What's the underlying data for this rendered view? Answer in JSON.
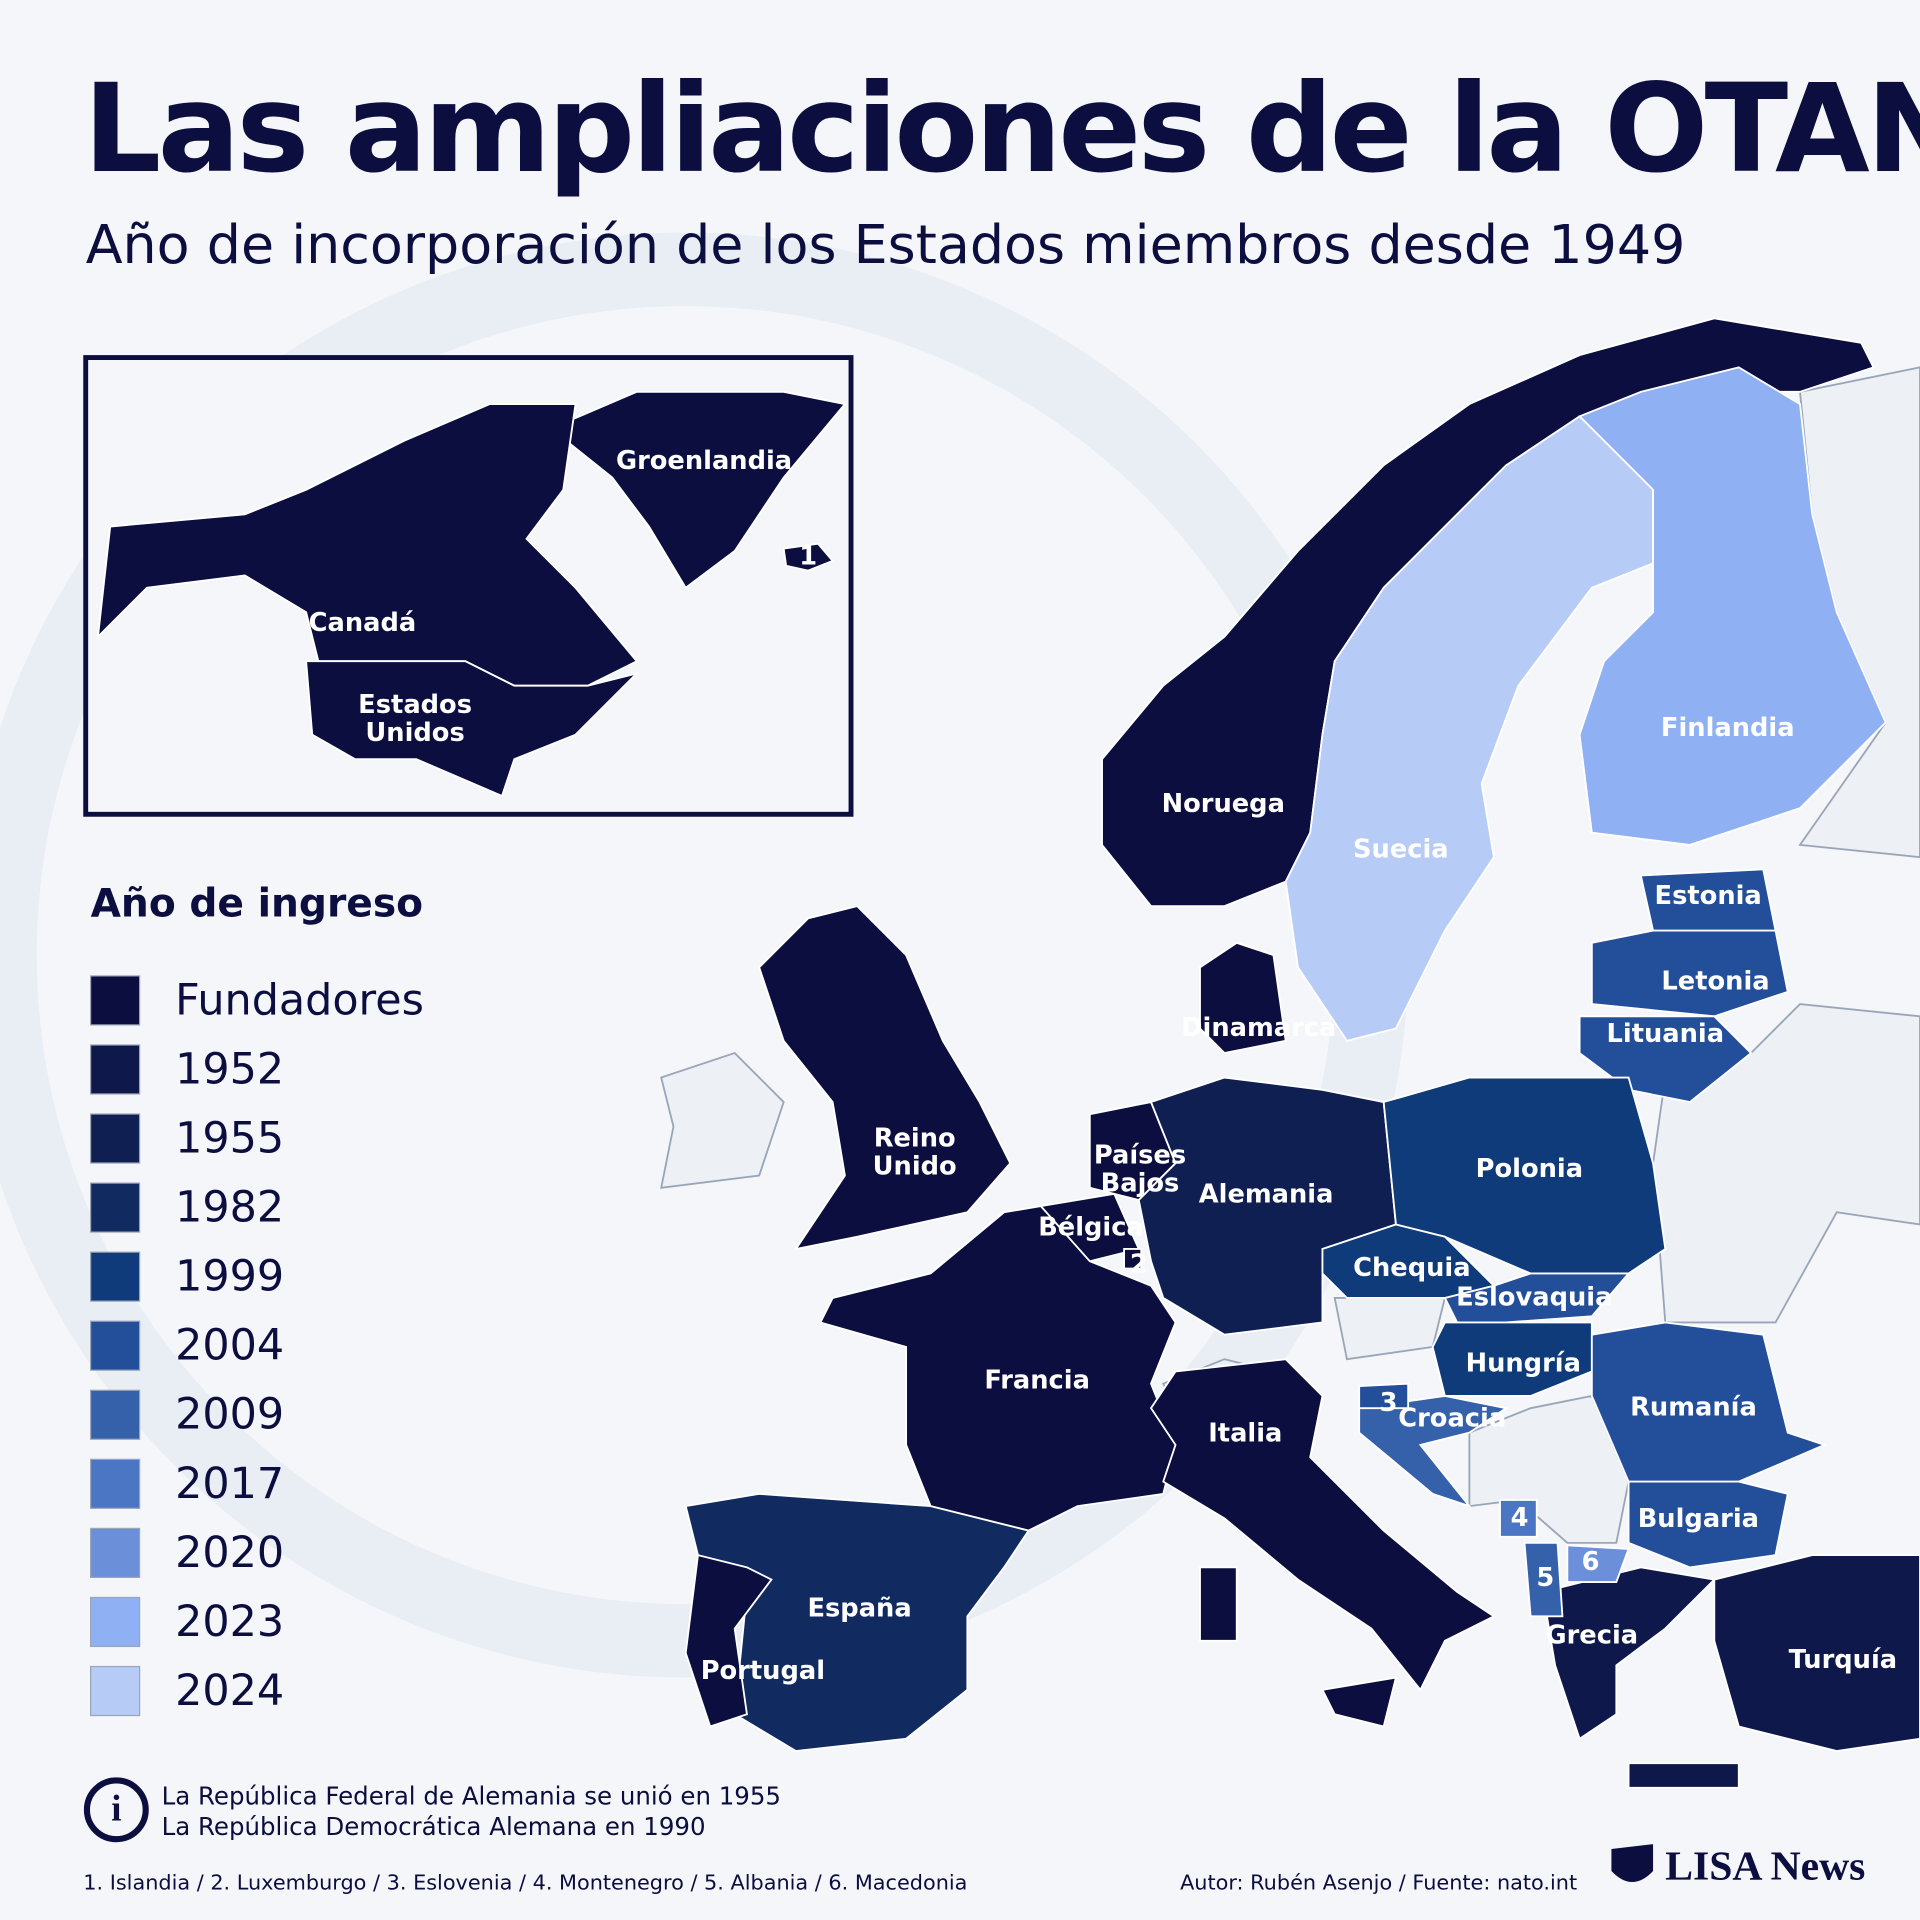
{
  "title": "Las ampliaciones de la OTAN",
  "subtitle": "Año de incorporación de los Estados miembros desde 1949",
  "legend": {
    "title": "Año de ingreso",
    "items": [
      {
        "label": "Fundadores",
        "color": "#0b0e3e"
      },
      {
        "label": "1952",
        "color": "#0e184a"
      },
      {
        "label": "1955",
        "color": "#0f1f52"
      },
      {
        "label": "1982",
        "color": "#112a5f"
      },
      {
        "label": "1999",
        "color": "#0f3b7a"
      },
      {
        "label": "2004",
        "color": "#234f9a"
      },
      {
        "label": "2009",
        "color": "#3561aa"
      },
      {
        "label": "2017",
        "color": "#4b76c3"
      },
      {
        "label": "2020",
        "color": "#6b8fd9"
      },
      {
        "label": "2023",
        "color": "#8fb0f2"
      },
      {
        "label": "2024",
        "color": "#b7cbf7"
      }
    ]
  },
  "countries": [
    {
      "lines": [
        "Groenlandia"
      ],
      "color": "#0b0e3e"
    },
    {
      "lines": [
        "Canadá"
      ],
      "color": "#0b0e3e"
    },
    {
      "lines": [
        "Estados",
        "Unidos"
      ],
      "color": "#0b0e3e"
    },
    {
      "lines": [
        "Noruega"
      ],
      "color": "#0b0e3e"
    },
    {
      "lines": [
        "Suecia"
      ],
      "color": "#b7cbf7"
    },
    {
      "lines": [
        "Finlandia"
      ],
      "color": "#8fb0f2"
    },
    {
      "lines": [
        "Estonia"
      ],
      "color": "#234f9a"
    },
    {
      "lines": [
        "Letonia"
      ],
      "color": "#234f9a"
    },
    {
      "lines": [
        "Lituania"
      ],
      "color": "#234f9a"
    },
    {
      "lines": [
        "Dinamarca"
      ],
      "color": "#0b0e3e"
    },
    {
      "lines": [
        "Reino",
        "Unido"
      ],
      "color": "#0b0e3e"
    },
    {
      "lines": [
        "Países",
        "Bajos"
      ],
      "color": "#0b0e3e"
    },
    {
      "lines": [
        "Alemania"
      ],
      "color": "#0f1f52"
    },
    {
      "lines": [
        "Polonia"
      ],
      "color": "#0f3b7a"
    },
    {
      "lines": [
        "Bélgica"
      ],
      "color": "#0b0e3e"
    },
    {
      "lines": [
        "Chequia"
      ],
      "color": "#0f3b7a"
    },
    {
      "lines": [
        "Eslovaquia"
      ],
      "color": "#234f9a"
    },
    {
      "lines": [
        "Hungría"
      ],
      "color": "#0f3b7a"
    },
    {
      "lines": [
        "Francia"
      ],
      "color": "#0b0e3e"
    },
    {
      "lines": [
        "Rumanía"
      ],
      "color": "#234f9a"
    },
    {
      "lines": [
        "Croacia"
      ],
      "color": "#3561aa"
    },
    {
      "lines": [
        "Italia"
      ],
      "color": "#0b0e3e"
    },
    {
      "lines": [
        "Bulgaria"
      ],
      "color": "#234f9a"
    },
    {
      "lines": [
        "España"
      ],
      "color": "#112a5f"
    },
    {
      "lines": [
        "Portugal"
      ],
      "color": "#0b0e3e"
    },
    {
      "lines": [
        "Grecia"
      ],
      "color": "#0e184a"
    },
    {
      "lines": [
        "Turquía"
      ],
      "color": "#0e184a"
    }
  ],
  "numbered": [
    {
      "label": "1",
      "color": "#0b0e3e"
    },
    {
      "label": "2",
      "color": "#0b0e3e"
    },
    {
      "label": "3",
      "color": "#234f9a"
    },
    {
      "label": "4",
      "color": "#4b76c3"
    },
    {
      "label": "5",
      "color": "#3561aa"
    },
    {
      "label": "6",
      "color": "#6b8fd9"
    }
  ],
  "note": [
    "La República Federal de Alemania se unió en 1955",
    "La República Democrática Alemana en 1990"
  ],
  "footnote": "1. Islandia / 2. Luxemburgo / 3. Eslovenia / 4. Montenegro / 5. Albania / 6. Macedonia",
  "credit": "Autor: Rubén Asenjo / Fuente: nato.int",
  "brand": "LISA News"
}
